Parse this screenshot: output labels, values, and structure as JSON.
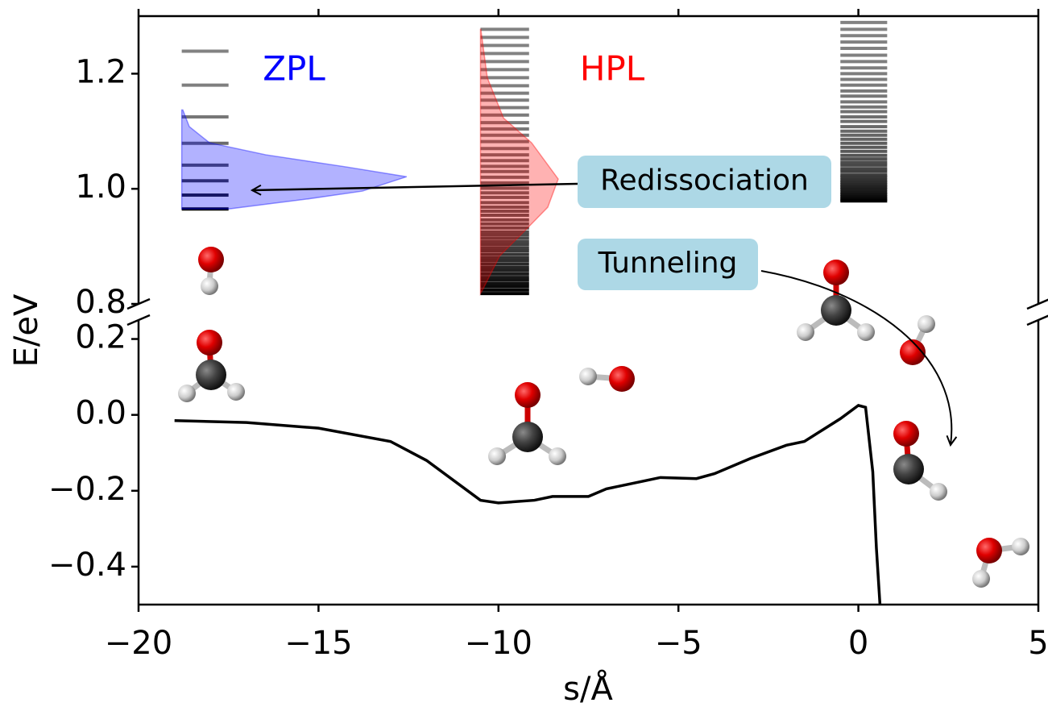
{
  "chart_data": {
    "type": "line",
    "x_label": "s/Å",
    "y_label": "E/eV",
    "xlim": [
      -20,
      5
    ],
    "xticks": [
      {
        "value": -20,
        "label": "−20"
      },
      {
        "value": -15,
        "label": "−15"
      },
      {
        "value": -10,
        "label": "−10"
      },
      {
        "value": -5,
        "label": "−5"
      },
      0,
      5
    ],
    "ylim": [
      -0.5,
      0.25
    ],
    "yticks": [
      {
        "value": -0.4,
        "label": "−0.4"
      },
      {
        "value": -0.2,
        "label": "−0.2"
      },
      {
        "value": 0,
        "label": "0.0"
      },
      0.2
    ],
    "upper": {
      "ylim": [
        0.8,
        1.3
      ],
      "yticks": [
        0.8,
        {
          "value": 1,
          "label": "1.0"
        },
        1.2
      ]
    },
    "color": "#000000",
    "x": [
      -19,
      -17,
      -15,
      -13,
      -12,
      -11,
      -10.5,
      -10,
      -9,
      -8.5,
      -7.5,
      -7,
      -6,
      -5.5,
      -4.5,
      -4,
      -3,
      -2,
      -1.5,
      -1,
      -0.5,
      0,
      0.2,
      0.4,
      0.5,
      0.6
    ],
    "values": [
      -0.015,
      -0.02,
      -0.035,
      -0.07,
      -0.12,
      -0.19,
      -0.225,
      -0.232,
      -0.225,
      -0.215,
      -0.215,
      -0.195,
      -0.175,
      -0.165,
      -0.168,
      -0.155,
      -0.115,
      -0.08,
      -0.07,
      -0.04,
      -0.01,
      0.025,
      0.02,
      -0.15,
      -0.35,
      -0.5
    ],
    "level_stacks": [
      {
        "name": "ZPL",
        "color": "#0000ff",
        "s_range": [
          -18.8,
          -17.5
        ],
        "levels": [
          1.239,
          1.18,
          1.125,
          1.079,
          1.041,
          1.014,
          0.989,
          0.965
        ],
        "band": {
          "E": [
            0.965,
            0.982,
            0.996,
            1.021,
            1.038,
            1.059,
            1.08,
            1.108,
            1.137
          ],
          "s": [
            -17.5,
            -15.34,
            -13.78,
            -12.55,
            -14.23,
            -16.46,
            -18.03,
            -18.59,
            -18.77
          ]
        }
      },
      {
        "name": "HPL",
        "color": "#ff0000",
        "s_range": [
          -10.5,
          -9.15
        ],
        "levels": [
          1.277,
          1.263,
          1.249,
          1.235,
          1.221,
          1.207,
          1.193,
          1.179,
          1.166,
          1.154,
          1.141,
          1.128,
          1.115,
          1.104,
          1.093,
          1.082,
          1.07,
          1.059,
          1.049,
          1.039,
          1.03,
          1.02,
          1.01,
          1.001,
          0.993,
          0.985,
          0.976,
          0.968,
          0.961,
          0.954,
          0.946,
          0.939,
          0.932,
          0.925,
          0.92,
          0.914,
          0.908,
          0.903,
          0.897,
          0.892,
          0.886,
          0.88,
          0.875,
          0.869,
          0.863,
          0.858,
          0.852,
          0.846,
          0.841,
          0.835,
          0.83,
          0.824,
          0.818
        ],
        "band": {
          "E": [
            0.818,
            0.827,
            0.883,
            0.925,
            0.968,
            1.017,
            1.08,
            1.123,
            1.193,
            1.277
          ],
          "s": [
            -10.5,
            -10.42,
            -9.97,
            -9.3,
            -8.63,
            -8.34,
            -9.08,
            -9.86,
            -10.31,
            -10.49
          ]
        }
      },
      {
        "s_range": [
          -0.5,
          0.8
        ],
        "levels": [
          1.289,
          1.277,
          1.266,
          1.255,
          1.244,
          1.232,
          1.221,
          1.21,
          1.2,
          1.19,
          1.18,
          1.17,
          1.161,
          1.151,
          1.142,
          1.134,
          1.125,
          1.117,
          1.108,
          1.1,
          1.093,
          1.086,
          1.079,
          1.072,
          1.065,
          1.058,
          1.052,
          1.046,
          1.041,
          1.035,
          1.03,
          1.024,
          1.02,
          1.015,
          1.011,
          1.007,
          1.003,
          0.999,
          0.994,
          0.99,
          0.986,
          0.982,
          0.979
        ]
      }
    ],
    "annotations": [
      {
        "text": "Redissociation"
      },
      {
        "text": "Tunneling"
      }
    ]
  }
}
